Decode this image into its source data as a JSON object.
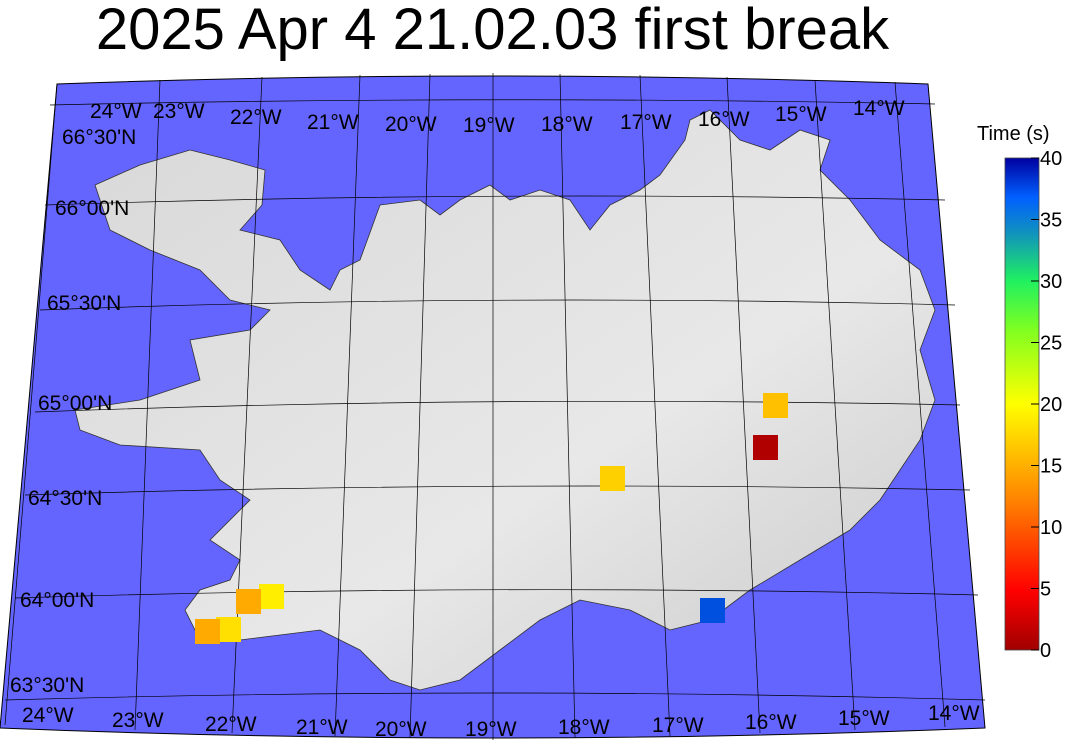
{
  "title": "2025 Apr 4 21.02.03 first break",
  "colorbar": {
    "label": "Time (s)",
    "ticks": [
      "0",
      "5",
      "10",
      "15",
      "20",
      "25",
      "30",
      "35",
      "40"
    ],
    "range": [
      0,
      40
    ],
    "colormap": "jet-reversed"
  },
  "map": {
    "ocean_color": "#6464ff",
    "top_lon_labels": [
      "24°W",
      "23°W",
      "22°W",
      "21°W",
      "20°W",
      "19°W",
      "18°W",
      "17°W",
      "16°W",
      "15°W",
      "14°W"
    ],
    "bottom_lon_labels": [
      "24°W",
      "23°W",
      "22°W",
      "21°W",
      "20°W",
      "19°W",
      "18°W",
      "17°W",
      "16°W",
      "15°W",
      "14°W"
    ],
    "lat_labels": [
      "66°30'N",
      "66°00'N",
      "65°30'N",
      "65°00'N",
      "64°30'N",
      "63°30'N",
      "64°00'N"
    ]
  },
  "stations": [
    {
      "time": 17,
      "color": "#ffc000"
    },
    {
      "time": 1,
      "color": "#b00000"
    },
    {
      "time": 17,
      "color": "#ffd000"
    },
    {
      "time": 37,
      "color": "#0050e0"
    },
    {
      "time": 20,
      "color": "#ffee00"
    },
    {
      "time": 14,
      "color": "#ffaa00"
    },
    {
      "time": 19,
      "color": "#ffe000"
    },
    {
      "time": 14,
      "color": "#ffaa00"
    }
  ]
}
